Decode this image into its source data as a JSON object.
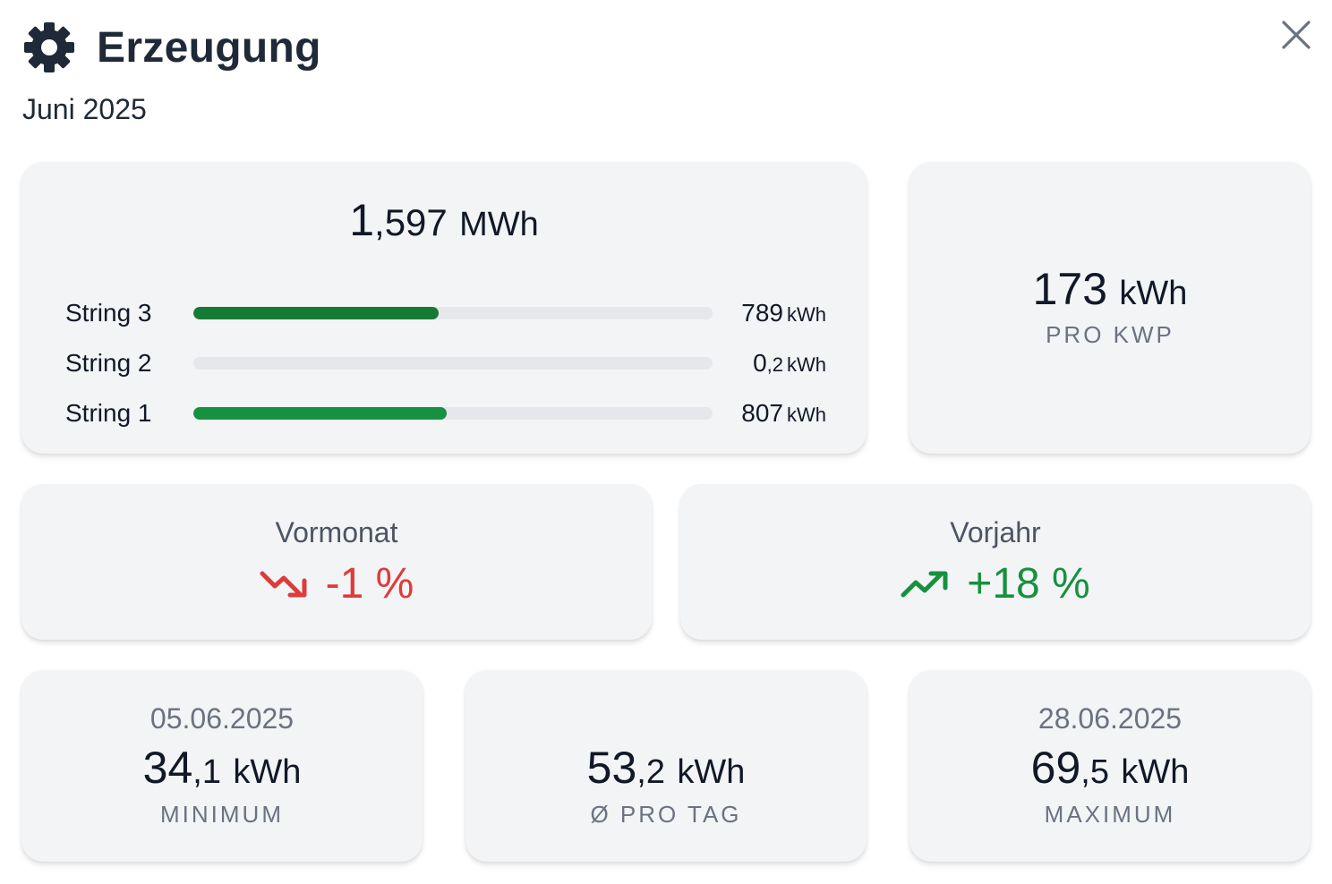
{
  "header": {
    "title": "Erzeugung",
    "period": "Juni 2025",
    "icon": "sun-icon",
    "close_icon": "close-icon"
  },
  "total": {
    "int": "1",
    "frac": ",597",
    "unit": "MWh"
  },
  "strings": [
    {
      "label": "String 3",
      "int": "789",
      "frac": "",
      "unit": "kWh",
      "fraction": 0.472,
      "color": "#157a34"
    },
    {
      "label": "String 2",
      "int": "0",
      "frac": ",2",
      "unit": "kWh",
      "fraction": 0.0,
      "color": "#16a34a"
    },
    {
      "label": "String 1",
      "int": "807",
      "frac": "",
      "unit": "kWh",
      "fraction": 0.488,
      "color": "#16913f"
    }
  ],
  "per_kwp": {
    "int": "173",
    "unit": "kWh",
    "label": "PRO KWP"
  },
  "comparison": {
    "prev_month": {
      "title": "Vormonat",
      "value": "-1 %",
      "color": "#dc3c3c",
      "trend": "down"
    },
    "prev_year": {
      "title": "Vorjahr",
      "value": "+18 %",
      "color": "#16913f",
      "trend": "up"
    }
  },
  "stats": {
    "min": {
      "date": "05.06.2025",
      "int": "34",
      "frac": ",1",
      "unit": "kWh",
      "label": "MINIMUM"
    },
    "avg": {
      "int": "53",
      "frac": ",2",
      "unit": "kWh",
      "label": "Ø PRO TAG"
    },
    "max": {
      "date": "28.06.2025",
      "int": "69",
      "frac": ",5",
      "unit": "kWh",
      "label": "MAXIMUM"
    }
  }
}
